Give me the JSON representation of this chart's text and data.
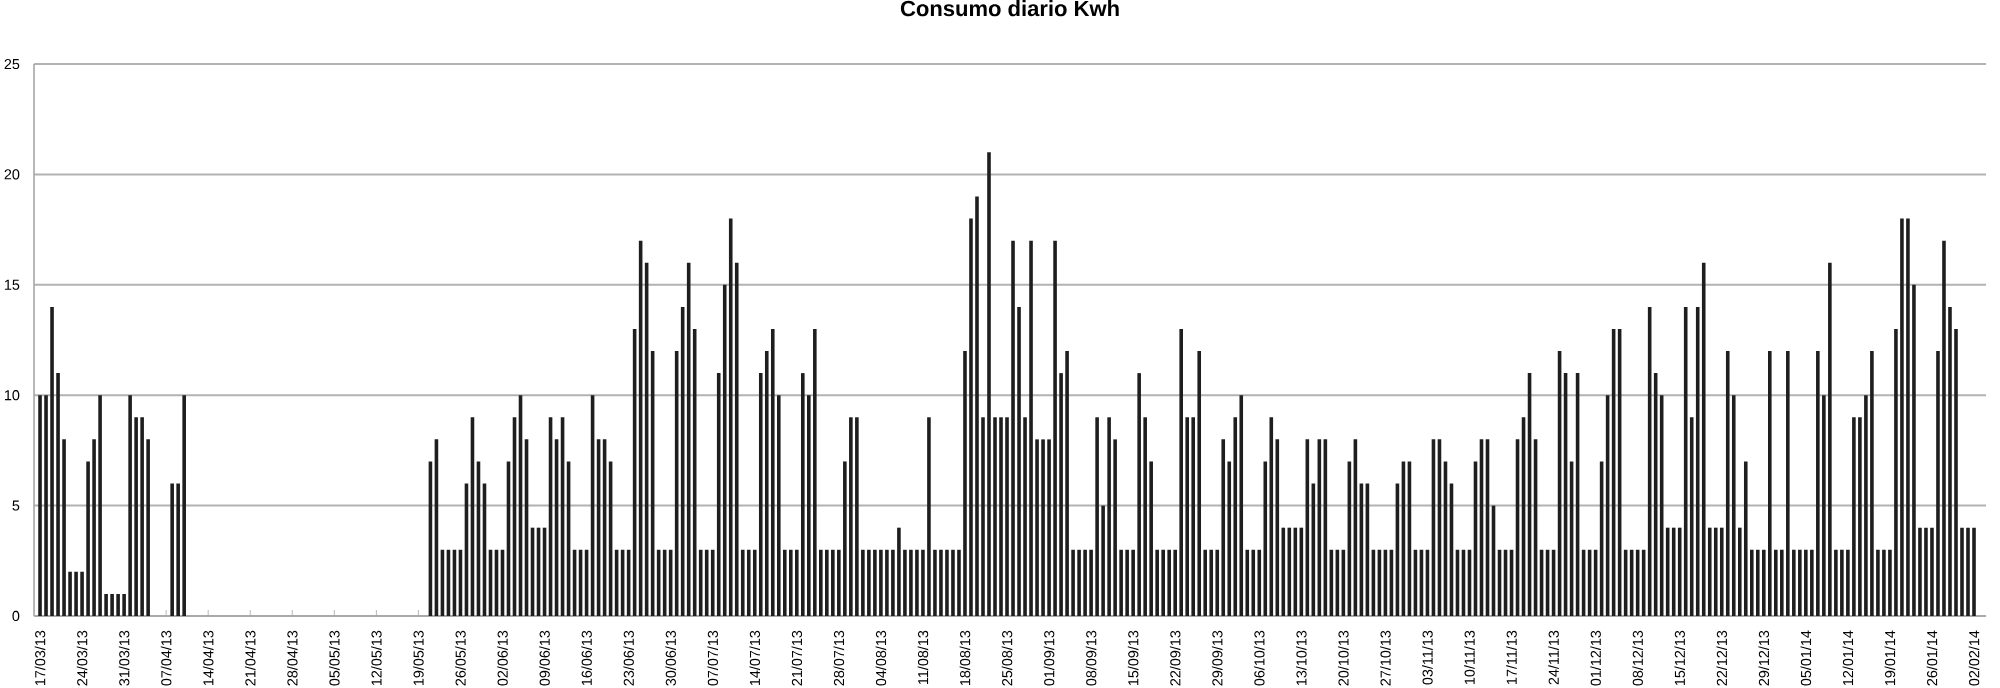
{
  "chart_data": {
    "type": "bar",
    "title": "Consumo diario Kwh",
    "categories": [
      "17/03/13",
      null,
      null,
      null,
      null,
      null,
      null,
      "24/03/13",
      null,
      null,
      null,
      null,
      null,
      null,
      "31/03/13",
      null,
      null,
      null,
      null,
      null,
      null,
      "07/04/13",
      null,
      null,
      null,
      null,
      null,
      null,
      "14/04/13",
      null,
      null,
      null,
      null,
      null,
      null,
      "21/04/13",
      null,
      null,
      null,
      null,
      null,
      null,
      "28/04/13",
      null,
      null,
      null,
      null,
      null,
      null,
      "05/05/13",
      null,
      null,
      null,
      null,
      null,
      null,
      "12/05/13",
      null,
      null,
      null,
      null,
      null,
      null,
      "19/05/13",
      null,
      null,
      null,
      null,
      null,
      null,
      "26/05/13",
      null,
      null,
      null,
      null,
      null,
      null,
      "02/06/13",
      null,
      null,
      null,
      null,
      null,
      null,
      "09/06/13",
      null,
      null,
      null,
      null,
      null,
      null,
      "16/06/13",
      null,
      null,
      null,
      null,
      null,
      null,
      "23/06/13",
      null,
      null,
      null,
      null,
      null,
      null,
      "30/06/13",
      null,
      null,
      null,
      null,
      null,
      null,
      "07/07/13",
      null,
      null,
      null,
      null,
      null,
      null,
      "14/07/13",
      null,
      null,
      null,
      null,
      null,
      null,
      "21/07/13",
      null,
      null,
      null,
      null,
      null,
      null,
      "28/07/13",
      null,
      null,
      null,
      null,
      null,
      null,
      "04/08/13",
      null,
      null,
      null,
      null,
      null,
      null,
      "11/08/13",
      null,
      null,
      null,
      null,
      null,
      null,
      "18/08/13",
      null,
      null,
      null,
      null,
      null,
      null,
      "25/08/13",
      null,
      null,
      null,
      null,
      null,
      null,
      "01/09/13",
      null,
      null,
      null,
      null,
      null,
      null,
      "08/09/13",
      null,
      null,
      null,
      null,
      null,
      null,
      "15/09/13",
      null,
      null,
      null,
      null,
      null,
      null,
      "22/09/13",
      null,
      null,
      null,
      null,
      null,
      null,
      "29/09/13",
      null,
      null,
      null,
      null,
      null,
      null,
      "06/10/13",
      null,
      null,
      null,
      null,
      null,
      null,
      "13/10/13",
      null,
      null,
      null,
      null,
      null,
      null,
      "20/10/13",
      null,
      null,
      null,
      null,
      null,
      null,
      "27/10/13",
      null,
      null,
      null,
      null,
      null,
      null,
      "03/11/13",
      null,
      null,
      null,
      null,
      null,
      null,
      "10/11/13",
      null,
      null,
      null,
      null,
      null,
      null,
      "17/11/13",
      null,
      null,
      null,
      null,
      null,
      null,
      "24/11/13",
      null,
      null,
      null,
      null,
      null,
      null,
      "01/12/13",
      null,
      null,
      null,
      null,
      null,
      null,
      "08/12/13",
      null,
      null,
      null,
      null,
      null,
      null,
      "15/12/13",
      null,
      null,
      null,
      null,
      null,
      null,
      "22/12/13",
      null,
      null,
      null,
      null,
      null,
      null,
      "29/12/13",
      null,
      null,
      null,
      null,
      null,
      null,
      "05/01/14",
      null,
      null,
      null,
      null,
      null,
      null,
      "12/01/14",
      null,
      null,
      null,
      null,
      null,
      null,
      "19/01/14",
      null,
      null,
      null,
      null,
      null,
      null,
      "26/01/14",
      null,
      null,
      null,
      null,
      null,
      null,
      "02/02/14"
    ],
    "values": [
      10,
      10,
      14,
      11,
      8,
      2,
      2,
      2,
      7,
      8,
      10,
      1,
      1,
      1,
      1,
      10,
      9,
      9,
      8,
      null,
      null,
      null,
      6,
      6,
      10,
      null,
      null,
      null,
      null,
      null,
      null,
      null,
      null,
      null,
      null,
      null,
      null,
      null,
      null,
      null,
      null,
      null,
      null,
      null,
      null,
      null,
      null,
      null,
      null,
      null,
      null,
      null,
      null,
      null,
      null,
      null,
      null,
      null,
      null,
      null,
      null,
      null,
      null,
      null,
      null,
      7,
      8,
      3,
      3,
      3,
      3,
      6,
      9,
      7,
      6,
      3,
      3,
      3,
      7,
      9,
      10,
      8,
      4,
      4,
      4,
      9,
      8,
      9,
      7,
      3,
      3,
      3,
      10,
      8,
      8,
      7,
      3,
      3,
      3,
      13,
      17,
      16,
      12,
      3,
      3,
      3,
      12,
      14,
      16,
      13,
      3,
      3,
      3,
      11,
      15,
      18,
      16,
      3,
      3,
      3,
      11,
      12,
      13,
      10,
      3,
      3,
      3,
      11,
      10,
      13,
      3,
      3,
      3,
      3,
      7,
      9,
      9,
      3,
      3,
      3,
      3,
      3,
      3,
      4,
      3,
      3,
      3,
      3,
      9,
      3,
      3,
      3,
      3,
      3,
      12,
      18,
      19,
      9,
      21,
      9,
      9,
      9,
      17,
      14,
      9,
      17,
      8,
      8,
      8,
      17,
      11,
      12,
      3,
      3,
      3,
      3,
      9,
      5,
      9,
      8,
      3,
      3,
      3,
      11,
      9,
      7,
      3,
      3,
      3,
      3,
      13,
      9,
      9,
      12,
      3,
      3,
      3,
      8,
      7,
      9,
      10,
      3,
      3,
      3,
      7,
      9,
      8,
      4,
      4,
      4,
      4,
      8,
      6,
      8,
      8,
      3,
      3,
      3,
      7,
      8,
      6,
      6,
      3,
      3,
      3,
      3,
      6,
      7,
      7,
      3,
      3,
      3,
      8,
      8,
      7,
      6,
      3,
      3,
      3,
      7,
      8,
      8,
      5,
      3,
      3,
      3,
      8,
      9,
      11,
      8,
      3,
      3,
      3,
      12,
      11,
      7,
      11,
      3,
      3,
      3,
      7,
      10,
      13,
      13,
      3,
      3,
      3,
      3,
      14,
      11,
      10,
      4,
      4,
      4,
      14,
      9,
      14,
      16,
      4,
      4,
      4,
      12,
      10,
      4,
      7,
      3,
      3,
      3,
      12,
      3,
      3,
      12,
      3,
      3,
      3,
      3,
      12,
      10,
      16,
      3,
      3,
      3,
      9,
      9,
      10,
      12,
      3,
      3,
      3,
      13,
      18,
      18,
      15,
      4,
      4,
      4,
      12,
      17,
      14,
      13,
      4,
      4,
      4
    ],
    "color": "#1e1e1e",
    "ylim": [
      0,
      25
    ],
    "yticks": [
      0,
      5,
      10,
      15,
      20,
      25
    ],
    "grid": "y"
  }
}
